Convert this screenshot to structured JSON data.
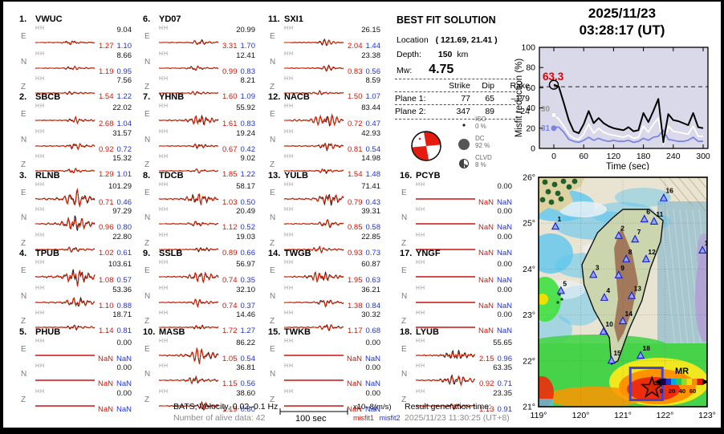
{
  "header": {
    "date": "2025/11/23",
    "time": "03:28:17  (UT)"
  },
  "solution": {
    "title": "BEST FIT SOLUTION",
    "location_label": "Location",
    "location_value": "( 121.69,  21.41 )",
    "depth_label": "Depth:",
    "depth_value": "150",
    "depth_unit": "km",
    "mw_label": "Mw:",
    "mw_value": "4.75",
    "plane_table": {
      "col_headers": [
        "Strike",
        "Dip",
        "Rake"
      ],
      "rows": [
        {
          "label": "Plane 1:",
          "strike": "77",
          "dip": "65",
          "rake": "–179"
        },
        {
          "label": "Plane 2:",
          "strike": "347",
          "dip": "89",
          "rake": "–24"
        }
      ]
    },
    "decomposition": [
      {
        "name": "ISO",
        "pct": "0 %"
      },
      {
        "name": "DC",
        "pct": "92 %"
      },
      {
        "name": "CLVD",
        "pct": "8 %"
      }
    ]
  },
  "stations": [
    {
      "num": "1.",
      "code": "VWUC",
      "rows": [
        [
          "E",
          "HH",
          "9.04",
          "1.27",
          "1.10"
        ],
        [
          "N",
          "HH",
          "8.66",
          "1.19",
          "0.95"
        ],
        [
          "Z",
          "HH",
          "7.56",
          "1.54",
          "1.22"
        ]
      ]
    },
    {
      "num": "2.",
      "code": "SBCB",
      "rows": [
        [
          "E",
          "HH",
          "22.02",
          "2.68",
          "1.04"
        ],
        [
          "N",
          "HH",
          "31.57",
          "0.92",
          "0.72"
        ],
        [
          "Z",
          "HH",
          "15.32",
          "1.29",
          "1.01"
        ]
      ]
    },
    {
      "num": "3.",
      "code": "RLNB",
      "rows": [
        [
          "E",
          "HH",
          "101.29",
          "0.71",
          "0.46"
        ],
        [
          "N",
          "HH",
          "97.29",
          "0.96",
          "0.80"
        ],
        [
          "Z",
          "HH",
          "22.80",
          "1.02",
          "0.61"
        ]
      ]
    },
    {
      "num": "4.",
      "code": "TPUB",
      "rows": [
        [
          "E",
          "HH",
          "103.61",
          "1.08",
          "0.57"
        ],
        [
          "N",
          "HH",
          "53.36",
          "1.10",
          "0.88"
        ],
        [
          "Z",
          "HH",
          "18.71",
          "1.14",
          "0.81"
        ]
      ]
    },
    {
      "num": "5.",
      "code": "PHUB",
      "rows": [
        [
          "E",
          "HH",
          "0.00",
          "NaN",
          "NaN"
        ],
        [
          "N",
          "HH",
          "0.00",
          "NaN",
          "NaN"
        ],
        [
          "Z",
          "HH",
          "0.00",
          "NaN",
          "NaN"
        ]
      ]
    },
    {
      "num": "6.",
      "code": "YD07",
      "rows": [
        [
          "E",
          "HH",
          "20.99",
          "3.31",
          "1.70"
        ],
        [
          "N",
          "HH",
          "12.41",
          "0.99",
          "0.83"
        ],
        [
          "Z",
          "HH",
          "8.21",
          "1.60",
          "1.09"
        ]
      ]
    },
    {
      "num": "7.",
      "code": "YHNB",
      "rows": [
        [
          "E",
          "HH",
          "55.92",
          "1.61",
          "0.83"
        ],
        [
          "N",
          "HH",
          "19.24",
          "0.67",
          "0.42"
        ],
        [
          "Z",
          "HH",
          "9.02",
          "1.85",
          "1.22"
        ]
      ]
    },
    {
      "num": "8.",
      "code": "TDCB",
      "rows": [
        [
          "E",
          "HH",
          "58.17",
          "1.03",
          "0.50"
        ],
        [
          "N",
          "HH",
          "20.49",
          "1.12",
          "0.52"
        ],
        [
          "Z",
          "HH",
          "19.03",
          "0.89",
          "0.66"
        ]
      ]
    },
    {
      "num": "9.",
      "code": "SSLB",
      "rows": [
        [
          "E",
          "HH",
          "56.97",
          "0.74",
          "0.35"
        ],
        [
          "N",
          "HH",
          "32.10",
          "0.74",
          "0.37"
        ],
        [
          "Z",
          "HH",
          "14.46",
          "1.72",
          "1.27"
        ]
      ]
    },
    {
      "num": "10.",
      "code": "MASB",
      "rows": [
        [
          "E",
          "HH",
          "86.22",
          "1.05",
          "0.54"
        ],
        [
          "N",
          "HH",
          "36.81",
          "1.15",
          "0.56"
        ],
        [
          "Z",
          "HH",
          "38.60",
          "1.19",
          "0.80"
        ]
      ]
    },
    {
      "num": "11.",
      "code": "SXI1",
      "rows": [
        [
          "E",
          "HH",
          "26.15",
          "2.04",
          "1.44"
        ],
        [
          "N",
          "HH",
          "23.38",
          "0.83",
          "0.56"
        ],
        [
          "Z",
          "HH",
          "8.59",
          "1.50",
          "1.07"
        ]
      ]
    },
    {
      "num": "12.",
      "code": "NACB",
      "rows": [
        [
          "E",
          "HH",
          "83.44",
          "0.72",
          "0.47"
        ],
        [
          "N",
          "HH",
          "42.93",
          "0.81",
          "0.54"
        ],
        [
          "Z",
          "HH",
          "14.98",
          "1.54",
          "1.48"
        ]
      ]
    },
    {
      "num": "13.",
      "code": "YULB",
      "rows": [
        [
          "E",
          "HH",
          "71.41",
          "0.79",
          "0.43"
        ],
        [
          "N",
          "HH",
          "39.31",
          "0.85",
          "0.58"
        ],
        [
          "Z",
          "HH",
          "22.85",
          "0.93",
          "0.73"
        ]
      ]
    },
    {
      "num": "14.",
      "code": "TWGB",
      "rows": [
        [
          "E",
          "HH",
          "60.87",
          "1.95",
          "0.63"
        ],
        [
          "N",
          "HH",
          "36.21",
          "1.38",
          "0.84"
        ],
        [
          "Z",
          "HH",
          "30.32",
          "1.17",
          "0.68"
        ]
      ]
    },
    {
      "num": "15.",
      "code": "TWKB",
      "rows": [
        [
          "E",
          "HH",
          "0.00",
          "NaN",
          "NaN"
        ],
        [
          "N",
          "HH",
          "0.00",
          "NaN",
          "NaN"
        ],
        [
          "Z",
          "HH",
          "0.00",
          "NaN",
          "NaN"
        ]
      ]
    },
    {
      "num": "16.",
      "code": "PCYB",
      "rows": [
        [
          "E",
          "HH",
          "0.00",
          "NaN",
          "NaN"
        ],
        [
          "N",
          "HH",
          "0.00",
          "NaN",
          "NaN"
        ],
        [
          "Z",
          "HH",
          "0.00",
          "NaN",
          "NaN"
        ]
      ]
    },
    {
      "num": "17.",
      "code": "YNGF",
      "rows": [
        [
          "E",
          "HH",
          "0.00",
          "NaN",
          "NaN"
        ],
        [
          "N",
          "HH",
          "0.00",
          "NaN",
          "NaN"
        ],
        [
          "Z",
          "HH",
          "0.00",
          "NaN",
          "NaN"
        ]
      ]
    },
    {
      "num": "18.",
      "code": "LYUB",
      "rows": [
        [
          "E",
          "HH",
          "55.65",
          "2.15",
          "0.96"
        ],
        [
          "N",
          "HH",
          "63.35",
          "0.92",
          "0.71"
        ],
        [
          "Z",
          "HH",
          "23.35",
          "1.13",
          "0.91"
        ]
      ]
    }
  ],
  "footer": {
    "source_line": "BATS, Velocity, 0.02–0.1 Hz",
    "alive_line": "Number of alive data: 42",
    "scalebar_label": "100 sec",
    "unit_label": "x10–8(m/s)",
    "misfit1_label": "misfit1",
    "misfit2_label": "misfit2",
    "result_label": "Result generation time:",
    "result_time": "2025/11/23 11:30:25 (UT+8)"
  },
  "chart_data": [
    {
      "type": "line",
      "title": "misfit reduction vs time",
      "xlabel": "Time (sec)",
      "ylabel": "Misfit reduction (%)",
      "xlim": [
        -10,
        310
      ],
      "ylim": [
        0,
        100
      ],
      "xticks": [
        0,
        60,
        120,
        180,
        240,
        300
      ],
      "yticks": [
        0,
        20,
        40,
        60,
        80,
        100
      ],
      "best_value_label": "63.3",
      "dashed_line_y": 61,
      "left_annotations": [
        {
          "text": "30",
          "color": "#999999",
          "y": 40
        },
        {
          "text": "31",
          "color": "#7b85e0",
          "y": 22
        }
      ],
      "x": [
        0,
        10,
        20,
        30,
        40,
        50,
        60,
        70,
        80,
        90,
        100,
        110,
        120,
        130,
        140,
        150,
        160,
        170,
        180,
        190,
        200,
        210,
        220,
        230,
        240,
        250,
        260,
        270,
        280,
        290,
        300
      ],
      "series": [
        {
          "name": "best solution",
          "color": "#000000",
          "values": [
            63,
            61,
            45,
            28,
            17,
            15,
            24,
            37,
            25,
            30,
            25,
            22,
            20,
            19,
            18,
            21,
            17,
            18,
            35,
            26,
            37,
            49,
            6,
            34,
            28,
            27,
            25,
            23,
            35,
            21,
            20
          ]
        },
        {
          "name": "trace 30",
          "color": "#ffffff",
          "values": [
            33,
            29,
            22,
            14,
            10,
            9,
            14,
            24,
            15,
            20,
            16,
            14,
            13,
            12,
            11,
            13,
            10,
            11,
            22,
            16,
            24,
            30,
            4,
            22,
            17,
            16,
            15,
            14,
            22,
            12,
            12
          ]
        },
        {
          "name": "trace 31",
          "color": "#7b85e0",
          "values": [
            21,
            21,
            16,
            9,
            7,
            6,
            8,
            11,
            8,
            10,
            8,
            7,
            8,
            7,
            7,
            8,
            6,
            7,
            10,
            8,
            11,
            12,
            18,
            9,
            8,
            7,
            7,
            8,
            11,
            7,
            7
          ]
        }
      ]
    },
    {
      "type": "scatter",
      "title": "station map with misfit-reduction field",
      "lon_range": [
        119,
        123
      ],
      "lat_range": [
        21,
        26
      ],
      "lon_ticks": [
        "119°",
        "120°",
        "121°",
        "122°",
        "123°"
      ],
      "lat_ticks": [
        "26°",
        "25°",
        "24°",
        "23°",
        "22°",
        "21°"
      ],
      "stations": [
        {
          "n": "1",
          "lon": 119.4,
          "lat": 24.93
        },
        {
          "n": "2",
          "lon": 120.9,
          "lat": 24.73
        },
        {
          "n": "3",
          "lon": 120.3,
          "lat": 23.88
        },
        {
          "n": "4",
          "lon": 120.56,
          "lat": 23.38
        },
        {
          "n": "5",
          "lon": 119.53,
          "lat": 23.53
        },
        {
          "n": "6",
          "lon": 121.51,
          "lat": 25.09
        },
        {
          "n": "7",
          "lon": 121.29,
          "lat": 24.65
        },
        {
          "n": "8",
          "lon": 121.08,
          "lat": 24.22
        },
        {
          "n": "9",
          "lon": 120.9,
          "lat": 23.87
        },
        {
          "n": "10",
          "lon": 120.54,
          "lat": 22.64
        },
        {
          "n": "11",
          "lon": 121.74,
          "lat": 25.04
        },
        {
          "n": "12",
          "lon": 121.55,
          "lat": 24.22
        },
        {
          "n": "13",
          "lon": 121.21,
          "lat": 23.42
        },
        {
          "n": "14",
          "lon": 121.0,
          "lat": 22.87
        },
        {
          "n": "15",
          "lon": 120.73,
          "lat": 22.01
        },
        {
          "n": "16",
          "lon": 121.97,
          "lat": 25.55
        },
        {
          "n": "17",
          "lon": 122.89,
          "lat": 24.41
        },
        {
          "n": "18",
          "lon": 121.42,
          "lat": 22.12
        }
      ],
      "epicenter": {
        "lon": 121.69,
        "lat": 21.41
      },
      "colorbar": {
        "label": "MR",
        "ticks": [
          "0",
          "20",
          "40",
          "60"
        ]
      }
    }
  ],
  "colors": {
    "misfit1": "#dd1100",
    "misfit2": "#2233cc",
    "plot_bg": "#d9d9e9",
    "trace_black": "#151515",
    "trace_red": "#d81f00",
    "blue_line": "#7b85e0",
    "beachball_red": "#e41b0e",
    "station_triangle": "#8fa8f8"
  }
}
